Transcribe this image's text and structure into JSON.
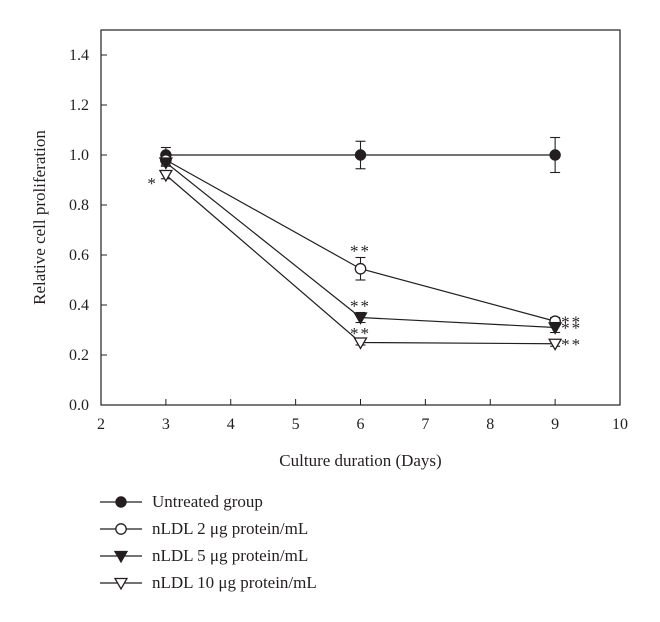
{
  "chart_data": {
    "type": "line",
    "xlabel": "Culture duration (Days)",
    "ylabel": "Relative cell proliferation",
    "xlim": [
      2,
      10
    ],
    "ylim": [
      0,
      1.5
    ],
    "xticks": [
      "2",
      "3",
      "4",
      "5",
      "6",
      "7",
      "8",
      "9",
      "10"
    ],
    "yticks": [
      "0.0",
      "0.2",
      "0.4",
      "0.6",
      "0.8",
      "1.0",
      "1.2",
      "1.4"
    ],
    "x": [
      3,
      6,
      9
    ],
    "series": [
      {
        "name": "Untreated group",
        "marker": "filled-circle",
        "values": [
          1.0,
          1.0,
          1.0
        ],
        "errors": [
          0.03,
          0.055,
          0.07
        ],
        "significance": [
          "",
          "",
          ""
        ]
      },
      {
        "name": "nLDL 2 μg protein/mL",
        "marker": "open-circle",
        "values": [
          0.98,
          0.545,
          0.335
        ],
        "errors": [
          0.02,
          0.045,
          0.015
        ],
        "significance": [
          "",
          "**",
          "**"
        ]
      },
      {
        "name": "nLDL 5 μg protein/mL",
        "marker": "filled-triangle-down",
        "values": [
          0.97,
          0.35,
          0.31
        ],
        "errors": [
          0.015,
          0.02,
          0.02
        ],
        "significance": [
          "",
          "**",
          "**"
        ]
      },
      {
        "name": "nLDL 10 μg protein/mL",
        "marker": "open-triangle-down",
        "values": [
          0.92,
          0.25,
          0.245
        ],
        "errors": [
          0.015,
          0.01,
          0.01
        ],
        "significance": [
          "*",
          "**",
          "**"
        ]
      }
    ],
    "grid": false,
    "legend_position": "bottom"
  },
  "colors": {
    "ink": "#231f20",
    "background": "#ffffff"
  }
}
